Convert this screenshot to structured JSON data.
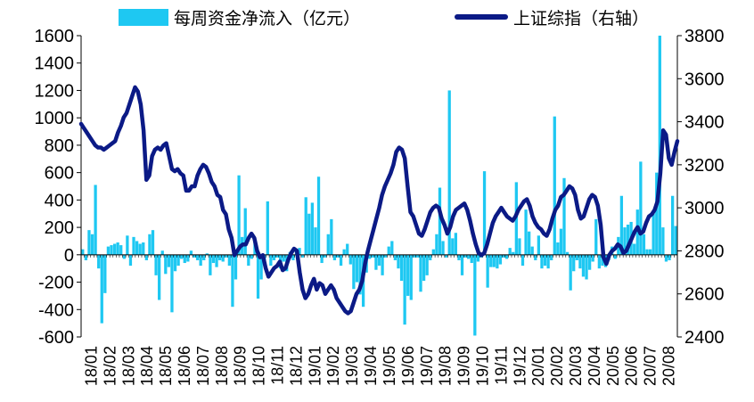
{
  "chart_data": {
    "type": "bar+line",
    "legend": {
      "placement": "top",
      "items": [
        {
          "label": "每周资金净流入（亿元）",
          "kind": "bar",
          "color": "#1ec8f2"
        },
        {
          "label": "上证综指（右轴）",
          "kind": "line",
          "color": "#0b1a86"
        }
      ]
    },
    "left_axis": {
      "min": -600,
      "max": 1600,
      "ticks": [
        "1600",
        "1400",
        "1200",
        "1000",
        "800",
        "600",
        "400",
        "200",
        "0",
        "-200",
        "-400",
        "-600"
      ]
    },
    "right_axis": {
      "min": 2400,
      "max": 3800,
      "ticks": [
        "3800",
        "3600",
        "3400",
        "3200",
        "3000",
        "2800",
        "2600",
        "2400"
      ]
    },
    "x_ticks": [
      "18/01",
      "18/02",
      "18/03",
      "18/04",
      "18/05",
      "18/06",
      "18/07",
      "18/08",
      "18/09",
      "18/10",
      "18/11",
      "18/12",
      "19/01",
      "19/02",
      "19/03",
      "19/04",
      "19/05",
      "19/06",
      "19/07",
      "19/08",
      "19/09",
      "19/10",
      "19/11",
      "19/12",
      "20/01",
      "20/02",
      "20/03",
      "20/04",
      "20/05",
      "20/06",
      "20/07",
      "20/08"
    ],
    "grid": false,
    "series": [
      {
        "name": "每周资金净流入（亿元）",
        "axis": "left",
        "values": [
          40,
          -40,
          180,
          150,
          510,
          -100,
          -500,
          -280,
          60,
          70,
          80,
          90,
          70,
          -30,
          140,
          -80,
          130,
          100,
          80,
          90,
          -40,
          150,
          180,
          -150,
          -330,
          30,
          -140,
          -90,
          -420,
          -120,
          -80,
          -30,
          -60,
          -50,
          30,
          -20,
          -40,
          -80,
          -40,
          10,
          -150,
          -60,
          -90,
          -40,
          -50,
          -20,
          -80,
          -380,
          -180,
          580,
          130,
          340,
          -80,
          -30,
          120,
          -320,
          -180,
          -60,
          390,
          -80,
          -40,
          -20,
          -100,
          -50,
          -120,
          20,
          -40,
          30,
          50,
          -20,
          420,
          300,
          380,
          200,
          570,
          -60,
          -20,
          150,
          260,
          -40,
          -20,
          -80,
          40,
          80,
          -70,
          -250,
          -200,
          -290,
          -380,
          -130,
          -30,
          -20,
          -110,
          -80,
          -150,
          -20,
          60,
          100,
          -40,
          -100,
          -190,
          -510,
          -300,
          -330,
          -20,
          -20,
          -270,
          -190,
          -150,
          -40,
          40,
          150,
          490,
          100,
          -20,
          1200,
          120,
          160,
          -40,
          -150,
          -20,
          -30,
          -60,
          -590,
          -50,
          -20,
          610,
          -240,
          -90,
          -90,
          -100,
          -70,
          -20,
          -30,
          50,
          20,
          530,
          120,
          -80,
          330,
          170,
          60,
          -40,
          140,
          -100,
          -80,
          -100,
          -40,
          1010,
          90,
          190,
          560,
          20,
          -260,
          -120,
          -40,
          -100,
          -160,
          -180,
          -110,
          -50,
          260,
          -100,
          -80,
          -90,
          -40,
          60,
          -30,
          130,
          430,
          200,
          220,
          240,
          80,
          330,
          680,
          150,
          40,
          40,
          300,
          600,
          1600,
          200,
          -50,
          -40,
          430,
          210
        ]
      },
      {
        "name": "上证综指（右轴）",
        "axis": "right",
        "values": [
          3390,
          3370,
          3350,
          3330,
          3310,
          3290,
          3280,
          3280,
          3270,
          3280,
          3290,
          3300,
          3310,
          3350,
          3380,
          3420,
          3440,
          3480,
          3520,
          3560,
          3540,
          3480,
          3360,
          3130,
          3150,
          3240,
          3270,
          3280,
          3270,
          3290,
          3300,
          3240,
          3180,
          3170,
          3180,
          3160,
          3150,
          3080,
          3080,
          3100,
          3100,
          3150,
          3180,
          3200,
          3190,
          3160,
          3120,
          3100,
          3060,
          3050,
          2990,
          2970,
          2900,
          2860,
          2780,
          2800,
          2820,
          2830,
          2830,
          2860,
          2880,
          2860,
          2800,
          2770,
          2780,
          2720,
          2680,
          2700,
          2720,
          2730,
          2750,
          2710,
          2720,
          2760,
          2790,
          2810,
          2800,
          2700,
          2620,
          2580,
          2600,
          2640,
          2670,
          2620,
          2650,
          2640,
          2600,
          2620,
          2640,
          2620,
          2580,
          2560,
          2540,
          2520,
          2510,
          2520,
          2560,
          2600,
          2620,
          2660,
          2740,
          2800,
          2850,
          2900,
          2950,
          3000,
          3060,
          3100,
          3130,
          3160,
          3200,
          3260,
          3280,
          3270,
          3230,
          3100,
          2980,
          2960,
          2920,
          2880,
          2870,
          2900,
          2940,
          2980,
          3000,
          3010,
          3000,
          2950,
          2920,
          2880,
          2910,
          2960,
          2990,
          3000,
          3010,
          3020,
          2990,
          2940,
          2880,
          2830,
          2790,
          2780,
          2790,
          2830,
          2880,
          2930,
          2960,
          2980,
          3000,
          2980,
          2960,
          2950,
          2940,
          2960,
          2990,
          3010,
          3030,
          3040,
          3010,
          2960,
          2930,
          2910,
          2900,
          2880,
          2870,
          2900,
          2950,
          2990,
          3010,
          3050,
          3060,
          3080,
          3100,
          3090,
          3060,
          2990,
          2950,
          2960,
          3000,
          3040,
          3060,
          3050,
          3010,
          2920,
          2770,
          2740,
          2780,
          2800,
          2810,
          2830,
          2820,
          2790,
          2800,
          2830,
          2860,
          2890,
          2910,
          2880,
          2890,
          2930,
          2960,
          2970,
          2990,
          3030,
          3160,
          3360,
          3340,
          3230,
          3200,
          3260,
          3310
        ]
      }
    ]
  }
}
